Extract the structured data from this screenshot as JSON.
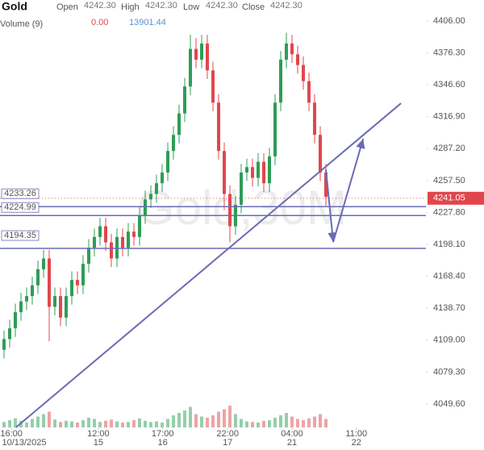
{
  "chart_data": {
    "type": "candlestick",
    "symbol": "Gold",
    "watermark": "Gold,30M",
    "header": {
      "open_label": "Open",
      "open": "4242.30",
      "high_label": "High",
      "high": "4242.30",
      "low_label": "Low",
      "low": "4242.30",
      "close_label": "Close",
      "close": "4242.30",
      "volume_label": "Volume (9)",
      "volume_change": "0.00",
      "volume": "13901.44"
    },
    "up_color": "#2e9d57",
    "down_color": "#e0474c",
    "open": [
      4100,
      4110,
      4120,
      4135,
      4145,
      4150,
      4160,
      4175,
      4185,
      4140,
      4150,
      4130,
      4150,
      4165,
      4160,
      4180,
      4195,
      4205,
      4215,
      4200,
      4185,
      4205,
      4195,
      4210,
      4205,
      4225,
      4240,
      4245,
      4255,
      4265,
      4285,
      4300,
      4320,
      4345,
      4380,
      4370,
      4385,
      4360,
      4330,
      4285,
      4245,
      4215,
      4235,
      4265,
      4270,
      4260,
      4275,
      4255,
      4280,
      4330,
      4370,
      4385,
      4375,
      4365,
      4350,
      4330,
      4300,
      4265
    ],
    "high": [
      4118,
      4128,
      4143,
      4153,
      4158,
      4168,
      4183,
      4193,
      4193,
      4158,
      4158,
      4158,
      4173,
      4173,
      4188,
      4203,
      4213,
      4223,
      4223,
      4208,
      4213,
      4213,
      4218,
      4218,
      4233,
      4248,
      4253,
      4263,
      4273,
      4293,
      4308,
      4328,
      4353,
      4393,
      4390,
      4393,
      4393,
      4368,
      4338,
      4293,
      4253,
      4243,
      4273,
      4278,
      4278,
      4283,
      4283,
      4288,
      4338,
      4378,
      4395,
      4393,
      4383,
      4373,
      4358,
      4338,
      4308,
      4273
    ],
    "low": [
      4092,
      4102,
      4112,
      4127,
      4137,
      4142,
      4152,
      4167,
      4108,
      4132,
      4122,
      4122,
      4142,
      4152,
      4152,
      4172,
      4187,
      4197,
      4192,
      4177,
      4177,
      4187,
      4187,
      4197,
      4197,
      4217,
      4232,
      4237,
      4247,
      4257,
      4277,
      4292,
      4312,
      4337,
      4362,
      4362,
      4352,
      4322,
      4277,
      4230,
      4200,
      4207,
      4227,
      4257,
      4252,
      4252,
      4247,
      4247,
      4272,
      4322,
      4362,
      4367,
      4357,
      4342,
      4322,
      4292,
      4257,
      4234
    ],
    "close": [
      4110,
      4120,
      4135,
      4145,
      4150,
      4160,
      4175,
      4185,
      4140,
      4150,
      4130,
      4150,
      4165,
      4160,
      4180,
      4195,
      4205,
      4215,
      4200,
      4185,
      4205,
      4195,
      4210,
      4205,
      4225,
      4240,
      4245,
      4255,
      4265,
      4285,
      4300,
      4320,
      4345,
      4380,
      4370,
      4385,
      4360,
      4330,
      4285,
      4245,
      4215,
      4235,
      4265,
      4270,
      4260,
      4275,
      4255,
      4280,
      4330,
      4370,
      4385,
      4375,
      4365,
      4350,
      4330,
      4300,
      4265,
      4242.3
    ],
    "volume": [
      9000,
      12000,
      15000,
      11000,
      8000,
      14000,
      18000,
      22000,
      26000,
      13000,
      9000,
      11000,
      10000,
      8000,
      12000,
      16000,
      14000,
      9000,
      11000,
      13000,
      10000,
      8000,
      9000,
      12000,
      15000,
      11000,
      9000,
      10000,
      8000,
      14000,
      20000,
      24000,
      28000,
      34000,
      22000,
      18000,
      16000,
      20000,
      26000,
      30000,
      36000,
      22000,
      14000,
      10000,
      9000,
      8000,
      11000,
      12000,
      16000,
      20000,
      24000,
      18000,
      14000,
      12000,
      15000,
      18000,
      22000,
      14000
    ],
    "vlim": [
      0,
      60000
    ],
    "ylim": [
      4027.8,
      4425.5
    ],
    "yticks": [
      {
        "value": 4406,
        "label": "4406.00"
      },
      {
        "value": 4376.3,
        "label": "4376.30"
      },
      {
        "value": 4346.6,
        "label": "4346.60"
      },
      {
        "value": 4316.9,
        "label": "4316.90"
      },
      {
        "value": 4287.2,
        "label": "4287.20"
      },
      {
        "value": 4257.5,
        "label": "4257.50"
      },
      {
        "value": 4227.8,
        "label": "4227.80"
      },
      {
        "value": 4198.1,
        "label": "4198.10"
      },
      {
        "value": 4168.4,
        "label": "4168.40"
      },
      {
        "value": 4138.7,
        "label": "4138.70"
      },
      {
        "value": 4109,
        "label": "4109.00"
      },
      {
        "value": 4079.3,
        "label": "4079.30"
      },
      {
        "value": 4049.6,
        "label": "4049.60"
      }
    ],
    "xticks": [
      {
        "value": 1.3,
        "label": "16:00"
      },
      {
        "value": 16.7,
        "label": "12:00"
      },
      {
        "value": 28.1,
        "label": "17:00"
      },
      {
        "value": 39.6,
        "label": "22:00"
      },
      {
        "value": 51,
        "label": "04:00"
      },
      {
        "value": 62.4,
        "label": "11:00"
      }
    ],
    "date_labels": [
      "10/13/2025",
      "15",
      "16",
      "17",
      "21",
      "22"
    ],
    "levels": [
      4233.26,
      4224.99,
      4194.35
    ],
    "level_color": "#6b6bb5",
    "last_price": 4241.05,
    "trendline": {
      "x": [
        2.1,
        70.3
      ],
      "y": [
        4027.8,
        4329.4
      ]
    },
    "projection": {
      "x": [
        57,
        58.3,
        63.6
      ],
      "y": [
        4267.9,
        4200.3,
        4296.4
      ]
    }
  }
}
